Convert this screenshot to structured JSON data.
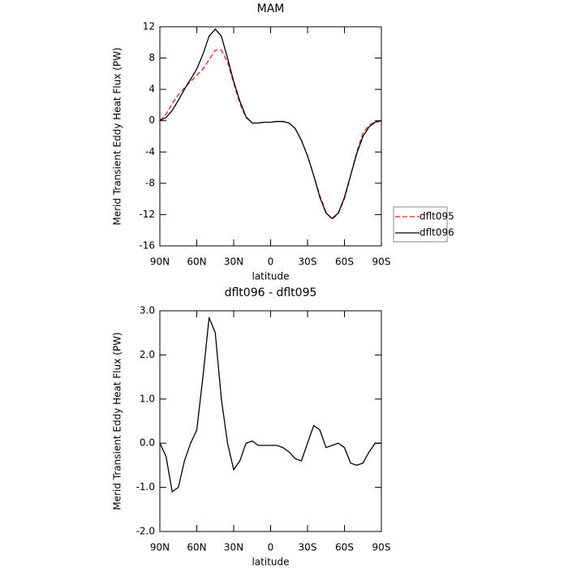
{
  "chart_data": [
    {
      "type": "line",
      "title": "MAM",
      "xlabel": "latitude",
      "ylabel": "Merid Transient Eddy Heat Flux (PW)",
      "x": [
        90,
        85,
        80,
        75,
        70,
        65,
        60,
        55,
        50,
        45,
        40,
        35,
        30,
        25,
        20,
        15,
        10,
        5,
        0,
        -5,
        -10,
        -15,
        -20,
        -25,
        -30,
        -35,
        -40,
        -45,
        -50,
        -55,
        -60,
        -65,
        -70,
        -75,
        -80,
        -85,
        -90
      ],
      "series": [
        {
          "name": "dflt095",
          "color": "#e02020",
          "line_style": "dashed",
          "values": [
            0,
            0.8,
            2.2,
            3.3,
            4.2,
            5,
            5.8,
            6.6,
            7.8,
            9,
            9,
            7.5,
            4.8,
            2.2,
            0.4,
            -0.3,
            -0.3,
            -0.2,
            -0.2,
            -0.1,
            -0.1,
            -0.3,
            -1,
            -2.5,
            -4.5,
            -7,
            -9.6,
            -11.7,
            -12.6,
            -11.9,
            -10,
            -7,
            -4,
            -1.6,
            -0.6,
            -0.1,
            0
          ]
        },
        {
          "name": "dflt096",
          "color": "#000000",
          "line_style": "solid",
          "values": [
            0,
            0.4,
            1.3,
            2.6,
            4,
            5.3,
            6.6,
            8.5,
            10.8,
            11.7,
            10.8,
            8,
            5,
            2.5,
            0.5,
            -0.3,
            -0.3,
            -0.2,
            -0.2,
            -0.1,
            -0.1,
            -0.3,
            -1,
            -2.5,
            -4.5,
            -7,
            -9.8,
            -11.8,
            -12.5,
            -11.8,
            -9.8,
            -7,
            -4.2,
            -2,
            -0.8,
            -0.2,
            0
          ]
        }
      ],
      "xlim": [
        90,
        -90
      ],
      "xticks": [
        {
          "value": 90,
          "label": "90N"
        },
        {
          "value": 60,
          "label": "60N"
        },
        {
          "value": 30,
          "label": "30N"
        },
        0,
        {
          "value": -30,
          "label": "30S"
        },
        {
          "value": -60,
          "label": "60S"
        },
        {
          "value": -90,
          "label": "90S"
        }
      ],
      "ylim": [
        -16,
        12
      ],
      "yticks": [
        -16,
        -12,
        -8,
        -4,
        0,
        4,
        8,
        12
      ],
      "legend": "right"
    },
    {
      "type": "line",
      "title": "dflt096 - dflt095",
      "xlabel": "latitude",
      "ylabel": "Merid Transient Eddy Heat Flux (PW)",
      "x": [
        90,
        85,
        80,
        75,
        70,
        65,
        60,
        55,
        50,
        45,
        40,
        35,
        30,
        25,
        20,
        15,
        10,
        5,
        0,
        -5,
        -10,
        -15,
        -20,
        -25,
        -30,
        -35,
        -40,
        -45,
        -50,
        -55,
        -60,
        -65,
        -70,
        -75,
        -80,
        -85,
        -90
      ],
      "color": "#000000",
      "values": [
        0,
        -0.3,
        -1.1,
        -1,
        -0.4,
        0,
        0.3,
        1.5,
        2.85,
        2.5,
        1,
        0,
        -0.6,
        -0.4,
        0,
        0.05,
        -0.05,
        -0.05,
        -0.05,
        -0.05,
        -0.1,
        -0.2,
        -0.35,
        -0.4,
        0,
        0.4,
        0.3,
        -0.1,
        -0.05,
        0,
        -0.1,
        -0.45,
        -0.5,
        -0.45,
        -0.2,
        0,
        0
      ],
      "xlim": [
        90,
        -90
      ],
      "xticks": [
        {
          "value": 90,
          "label": "90N"
        },
        {
          "value": 60,
          "label": "60N"
        },
        {
          "value": 30,
          "label": "30N"
        },
        0,
        {
          "value": -30,
          "label": "30S"
        },
        {
          "value": -60,
          "label": "60S"
        },
        {
          "value": -90,
          "label": "90S"
        }
      ],
      "ylim": [
        -2,
        3
      ],
      "yticks": [
        {
          "value": -2,
          "label": "-2.0"
        },
        {
          "value": -1,
          "label": "-1.0"
        },
        {
          "value": 0,
          "label": "0.0"
        },
        {
          "value": 1,
          "label": "1.0"
        },
        {
          "value": 2,
          "label": "2.0"
        },
        {
          "value": 3,
          "label": "3.0"
        }
      ]
    }
  ]
}
